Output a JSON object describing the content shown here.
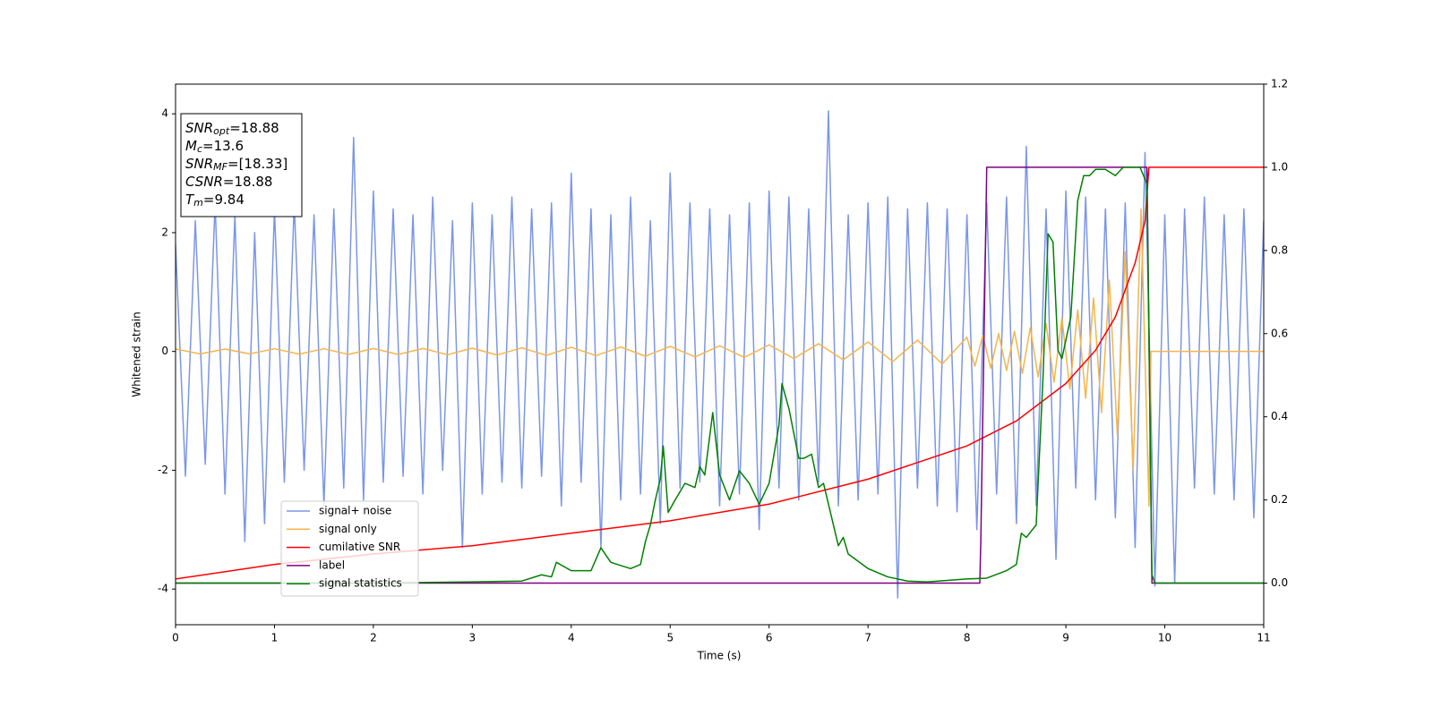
{
  "chart_data": {
    "type": "line",
    "xlabel": "Time (s)",
    "ylabel": "Whitened strain",
    "xlim": [
      0,
      11
    ],
    "ylim": [
      -4.6,
      4.5
    ],
    "y2lim": [
      -0.1,
      1.2
    ],
    "xticks": [
      0,
      1,
      2,
      3,
      4,
      5,
      6,
      7,
      8,
      9,
      10,
      11
    ],
    "yticks": [
      -4,
      -2,
      0,
      2,
      4
    ],
    "y2ticks": [
      {
        "value": 0,
        "label": "0.0"
      },
      {
        "value": 0.2,
        "label": "0.2"
      },
      {
        "value": 0.4,
        "label": "0.4"
      },
      {
        "value": 0.6,
        "label": "0.6"
      },
      {
        "value": 0.8,
        "label": "0.8"
      },
      {
        "value": 1,
        "label": "1.0"
      },
      {
        "value": 1.2,
        "label": "1.2"
      }
    ],
    "annotations": [
      {
        "base": "SNR",
        "sub": "opt",
        "rest": "=18.88"
      },
      {
        "base": "M",
        "sub": "c",
        "rest": "=13.6"
      },
      {
        "base": "SNR",
        "sub": "MF",
        "rest": "=[18.33]"
      },
      {
        "base": "CSNR",
        "sub": "",
        "rest": "=18.88"
      },
      {
        "base": "T",
        "sub": "m",
        "rest": "=9.84"
      }
    ],
    "series": [
      {
        "name": "signal+ noise",
        "color": "#7b96e8",
        "axis": "y",
        "x": [
          0,
          0.1,
          0.2,
          0.3,
          0.4,
          0.5,
          0.6,
          0.7,
          0.8,
          0.9,
          1,
          1.1,
          1.2,
          1.3,
          1.4,
          1.5,
          1.6,
          1.7,
          1.8,
          1.9,
          2,
          2.1,
          2.2,
          2.3,
          2.4,
          2.5,
          2.6,
          2.7,
          2.8,
          2.9,
          3,
          3.1,
          3.2,
          3.3,
          3.4,
          3.5,
          3.6,
          3.7,
          3.8,
          3.9,
          4,
          4.1,
          4.2,
          4.3,
          4.4,
          4.5,
          4.6,
          4.7,
          4.8,
          4.9,
          5,
          5.1,
          5.2,
          5.3,
          5.4,
          5.5,
          5.6,
          5.7,
          5.8,
          5.9,
          6,
          6.1,
          6.2,
          6.3,
          6.4,
          6.5,
          6.6,
          6.7,
          6.8,
          6.9,
          7,
          7.1,
          7.2,
          7.3,
          7.4,
          7.5,
          7.6,
          7.7,
          7.8,
          7.9,
          8,
          8.1,
          8.2,
          8.3,
          8.4,
          8.5,
          8.6,
          8.7,
          8.8,
          8.9,
          9,
          9.1,
          9.2,
          9.3,
          9.4,
          9.5,
          9.6,
          9.7,
          9.8,
          9.9,
          10,
          10.1,
          10.2,
          10.3,
          10.4,
          10.5,
          10.6,
          10.7,
          10.8,
          10.9,
          11
        ],
        "values": [
          1.8,
          -2.1,
          2.2,
          -1.9,
          2.5,
          -2.4,
          2.3,
          -3.2,
          2.0,
          -2.9,
          2.4,
          -2.2,
          2.5,
          -2.0,
          2.3,
          -2.6,
          2.4,
          -2.3,
          3.6,
          -2.5,
          2.7,
          -2.2,
          2.4,
          -2.1,
          2.3,
          -2.4,
          2.6,
          -2.0,
          2.2,
          -3.3,
          2.5,
          -2.4,
          2.3,
          -2.2,
          2.6,
          -2.3,
          2.4,
          -2.1,
          2.5,
          -2.6,
          3.0,
          -2.2,
          2.4,
          -3.3,
          2.3,
          -2.5,
          2.6,
          -2.4,
          2.2,
          -2.9,
          3.0,
          -2.3,
          2.5,
          -2.2,
          2.4,
          -2.6,
          2.3,
          -2.4,
          2.5,
          -3.0,
          2.7,
          -2.3,
          2.6,
          -2.5,
          2.4,
          -2.2,
          4.05,
          -2.6,
          2.3,
          -2.5,
          2.5,
          -2.4,
          2.6,
          -4.15,
          2.4,
          -2.3,
          2.5,
          -2.6,
          2.4,
          -2.7,
          2.3,
          -3.0,
          2.5,
          -2.4,
          2.6,
          -2.9,
          3.45,
          -2.6,
          2.4,
          -3.5,
          2.7,
          -2.3,
          2.6,
          -2.5,
          2.4,
          -2.8,
          2.5,
          -3.3,
          3.35,
          -3.95,
          2.3,
          -3.9,
          2.4,
          -2.3,
          2.6,
          -2.4,
          2.3,
          -2.5,
          2.4,
          -2.8,
          2.2
        ]
      },
      {
        "name": "signal only",
        "color": "#f5b54a",
        "axis": "y",
        "x": [
          0,
          0.25,
          0.5,
          0.75,
          1,
          1.25,
          1.5,
          1.75,
          2,
          2.25,
          2.5,
          2.75,
          3,
          3.25,
          3.5,
          3.75,
          4,
          4.25,
          4.5,
          4.75,
          5,
          5.25,
          5.5,
          5.75,
          6,
          6.25,
          6.5,
          6.75,
          7,
          7.25,
          7.5,
          7.75,
          8,
          8.08,
          8.16,
          8.24,
          8.32,
          8.4,
          8.48,
          8.56,
          8.64,
          8.72,
          8.8,
          8.88,
          8.96,
          9.04,
          9.12,
          9.2,
          9.28,
          9.36,
          9.44,
          9.52,
          9.6,
          9.68,
          9.76,
          9.84,
          9.86,
          11
        ],
        "values": [
          0.04,
          -0.04,
          0.04,
          -0.04,
          0.045,
          -0.045,
          0.045,
          -0.05,
          0.05,
          -0.05,
          0.05,
          -0.055,
          0.055,
          -0.06,
          0.06,
          -0.065,
          0.07,
          -0.07,
          0.075,
          -0.08,
          0.085,
          -0.09,
          0.095,
          -0.1,
          0.11,
          -0.12,
          0.13,
          -0.14,
          0.16,
          -0.17,
          0.19,
          -0.21,
          0.24,
          -0.25,
          0.27,
          -0.28,
          0.3,
          -0.32,
          0.34,
          -0.37,
          0.4,
          -0.43,
          0.47,
          -0.52,
          0.57,
          -0.63,
          0.7,
          -0.79,
          0.9,
          -1.03,
          1.2,
          -1.4,
          1.68,
          -2.0,
          2.4,
          -2.6,
          0,
          0
        ]
      },
      {
        "name": "cumilative SNR",
        "color": "red",
        "axis": "y2",
        "x": [
          0,
          1,
          2,
          3,
          4,
          5,
          6,
          7,
          8,
          8.5,
          9,
          9.3,
          9.5,
          9.7,
          9.8,
          9.84,
          11
        ],
        "values": [
          0.01,
          0.045,
          0.07,
          0.09,
          0.12,
          0.15,
          0.19,
          0.25,
          0.33,
          0.39,
          0.48,
          0.56,
          0.64,
          0.77,
          0.87,
          1.0,
          1.0
        ]
      },
      {
        "name": "label",
        "color": "purple",
        "axis": "y2",
        "x": [
          0,
          8.13,
          8.14,
          8.2,
          9.82,
          9.87,
          11
        ],
        "values": [
          0,
          0,
          0.1,
          1,
          1,
          0,
          0
        ]
      },
      {
        "name": "signal statistics",
        "color": "green",
        "axis": "y2",
        "x": [
          0,
          1,
          2,
          3,
          3.5,
          3.7,
          3.8,
          3.85,
          4,
          4.2,
          4.3,
          4.4,
          4.6,
          4.7,
          4.75,
          4.8,
          4.85,
          4.9,
          4.93,
          4.98,
          5.05,
          5.15,
          5.25,
          5.3,
          5.35,
          5.43,
          5.5,
          5.6,
          5.7,
          5.8,
          5.9,
          6.0,
          6.1,
          6.13,
          6.2,
          6.3,
          6.35,
          6.43,
          6.5,
          6.55,
          6.7,
          6.75,
          6.8,
          7.0,
          7.2,
          7.4,
          7.6,
          8.0,
          8.2,
          8.4,
          8.5,
          8.55,
          8.6,
          8.7,
          8.77,
          8.82,
          8.87,
          8.92,
          8.96,
          9.05,
          9.12,
          9.18,
          9.24,
          9.3,
          9.4,
          9.5,
          9.58,
          9.75,
          9.82,
          9.87,
          9.9,
          11
        ],
        "values": [
          0,
          0,
          0,
          0.003,
          0.005,
          0.02,
          0.015,
          0.05,
          0.03,
          0.03,
          0.085,
          0.05,
          0.035,
          0.045,
          0.1,
          0.14,
          0.2,
          0.25,
          0.33,
          0.17,
          0.2,
          0.24,
          0.23,
          0.28,
          0.26,
          0.41,
          0.26,
          0.2,
          0.27,
          0.24,
          0.19,
          0.24,
          0.38,
          0.48,
          0.42,
          0.3,
          0.3,
          0.31,
          0.23,
          0.24,
          0.09,
          0.11,
          0.07,
          0.035,
          0.015,
          0.005,
          0.003,
          0.01,
          0.012,
          0.03,
          0.045,
          0.12,
          0.11,
          0.14,
          0.5,
          0.84,
          0.82,
          0.56,
          0.54,
          0.64,
          0.92,
          0.98,
          0.98,
          0.995,
          0.995,
          0.98,
          1.0,
          1.0,
          0.96,
          0.02,
          0,
          0
        ]
      }
    ]
  }
}
